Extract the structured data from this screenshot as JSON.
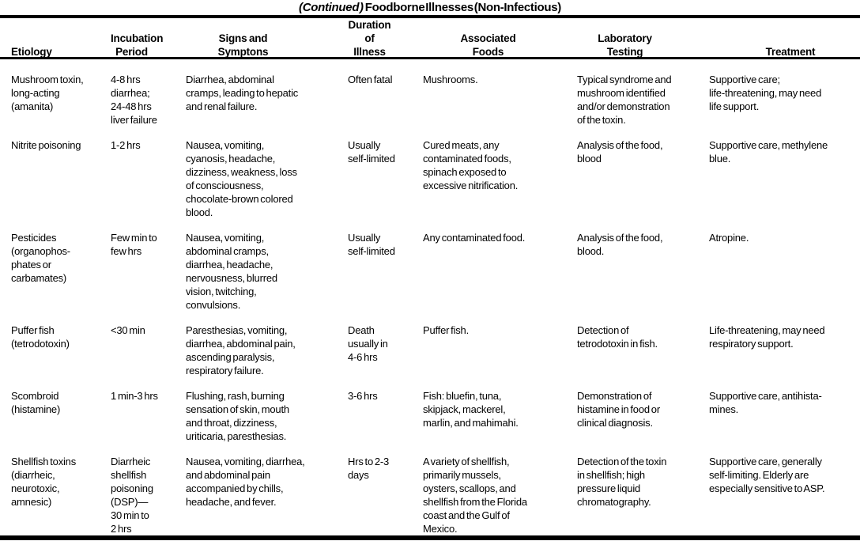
{
  "title": {
    "continued": "(Continued )",
    "main": "Foodborne Illnesses (Non-Infectious)"
  },
  "columns": [
    {
      "label": "Etiology"
    },
    {
      "label": "Incubation\nPeriod"
    },
    {
      "label": "Signs and\nSymptons"
    },
    {
      "label": "Duration\nof Illness"
    },
    {
      "label": "Associated\nFoods"
    },
    {
      "label": "Laboratory\nTesting"
    },
    {
      "label": "Treatment"
    }
  ],
  "rows": [
    {
      "etiology": "Mushroom toxin,\nlong-acting\n(amanita)",
      "incubation": "4-8 hrs\ndiarrhea;\n24-48 hrs\nliver failure",
      "signs": "Diarrhea, abdominal\ncramps, leading to hepatic\nand renal failure.",
      "duration": "Often fatal",
      "foods": "Mushrooms.",
      "lab": "Typical syndrome and\nmushroom identified\nand/or demonstration\nof the toxin.",
      "treatment": "Supportive care;\nlife-threatening, may need\nlife support."
    },
    {
      "etiology": "Nitrite poisoning",
      "incubation": "1-2 hrs",
      "signs": "Nausea, vomiting,\ncyanosis, headache,\ndizziness, weakness, loss\nof consciousness,\nchocolate-brown colored\nblood.",
      "duration": "Usually\nself-limited",
      "foods": "Cured meats, any\ncontaminated foods,\nspinach exposed to\nexcessive nitrification.",
      "lab": "Analysis of the food,\nblood",
      "treatment": "Supportive care, methylene\nblue."
    },
    {
      "etiology": "Pesticides\n(organophos-\nphates or\ncarbamates)",
      "incubation": "Few min to\nfew hrs",
      "signs": "Nausea, vomiting,\nabdominal cramps,\ndiarrhea, headache,\nnervousness, blurred\nvision, twitching,\nconvulsions.",
      "duration": "Usually\nself-limited",
      "foods": "Any contaminated food.",
      "lab": "Analysis of the food,\nblood.",
      "treatment": "Atropine."
    },
    {
      "etiology": "Puffer fish\n(tetrodotoxin)",
      "incubation": "<30 min",
      "signs": "Paresthesias, vomiting,\ndiarrhea, abdominal pain,\nascending paralysis,\nrespiratory failure.",
      "duration": "Death\nusually in\n4-6 hrs",
      "foods": "Puffer fish.",
      "lab": "Detection of\ntetrodotoxin in fish.",
      "treatment": "Life-threatening, may need\nrespiratory support."
    },
    {
      "etiology": "Scombroid\n(histamine)",
      "incubation": "1 min-3 hrs",
      "signs": "Flushing, rash, burning\nsensation of skin, mouth\nand throat, dizziness,\nuriticaria, paresthesias.",
      "duration": "3-6 hrs",
      "foods": "Fish: bluefin, tuna,\nskipjack, mackerel,\nmarlin, and mahimahi.",
      "lab": "Demonstration of\nhistamine in food or\nclinical diagnosis.",
      "treatment": "Supportive care, antihista-\nmines."
    },
    {
      "etiology": "Shellfish toxins\n(diarrheic,\nneurotoxic,\namnesic)",
      "incubation": "Diarrheic\nshellfish\npoisoning\n(DSP)—\n30 min to\n2 hrs",
      "signs": "Nausea, vomiting, diarrhea,\nand abdominal pain\naccompanied by chills,\nheadache, and fever.",
      "duration": "Hrs to 2-3\ndays",
      "foods": "A variety of shellfish,\nprimarily mussels,\noysters, scallops, and\nshellfish from the Florida\ncoast and the Gulf of\nMexico.",
      "lab": "Detection of the toxin\nin shellfish; high\npressure liquid\nchromatography.",
      "treatment": "Supportive care, generally\nself-limiting. Elderly are\nespecially sensitive to ASP."
    }
  ]
}
